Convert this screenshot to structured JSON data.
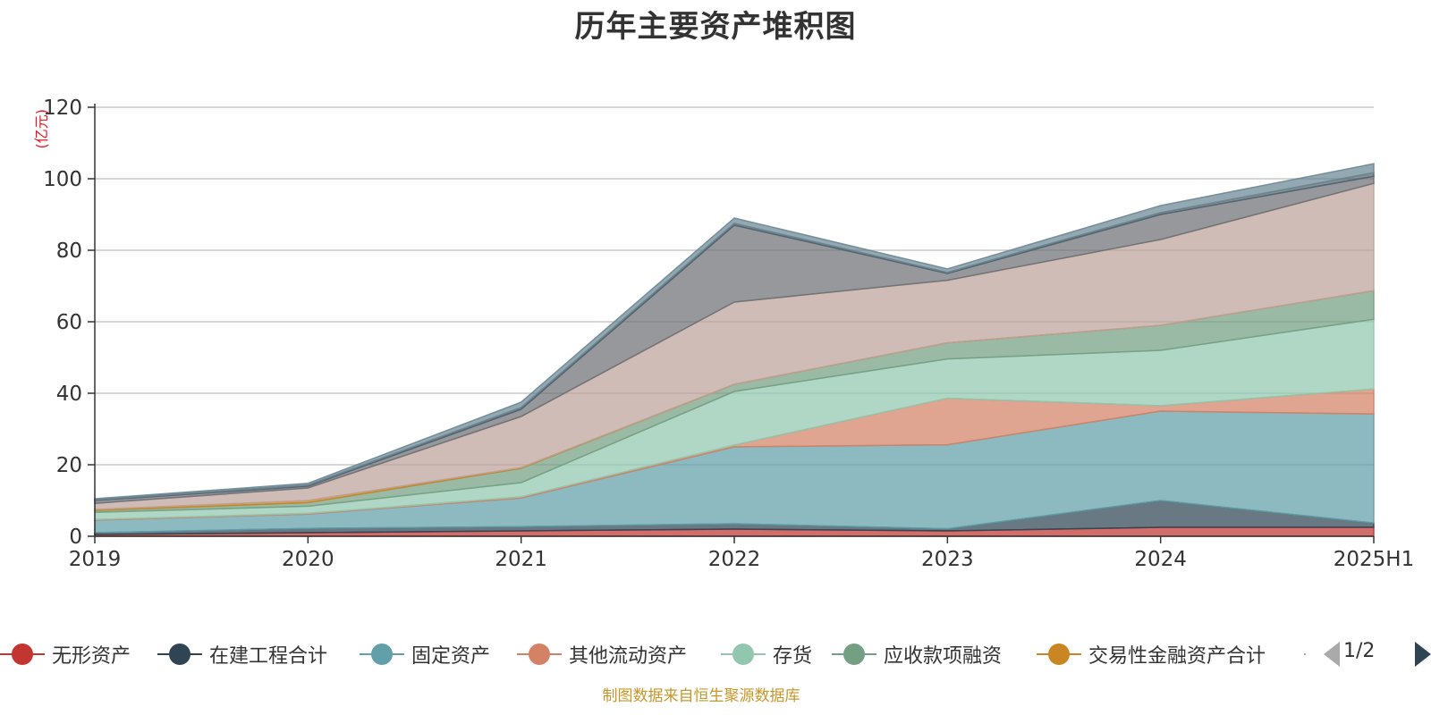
{
  "title": "历年主要资产堆积图",
  "source_note": "制图数据来自恒生聚源数据库",
  "legend_pager": "1/2",
  "chart_data": {
    "type": "area",
    "stacked": true,
    "title": "历年主要资产堆积图",
    "y_unit_label": "(亿元)",
    "categories": [
      "2019",
      "2020",
      "2021",
      "2022",
      "2023",
      "2024",
      "2025H1"
    ],
    "ylim": [
      0,
      120
    ],
    "yticks": [
      0,
      20,
      40,
      60,
      80,
      100,
      120
    ],
    "grid": true,
    "legend_position": "bottom",
    "series": [
      {
        "name": "无形资产",
        "color": "#c23531",
        "values": [
          0.5,
          1,
          1.5,
          2,
          1.5,
          2.5,
          2.5
        ]
      },
      {
        "name": "在建工程合计",
        "color": "#2f4554",
        "values": [
          0.5,
          1.2,
          1.2,
          1.5,
          0.6,
          7.5,
          1.2
        ]
      },
      {
        "name": "固定资产",
        "color": "#61a0a8",
        "values": [
          3.5,
          4,
          8,
          21.5,
          23.5,
          25,
          30.5
        ]
      },
      {
        "name": "其他流动资产",
        "color": "#d48265",
        "values": [
          0.2,
          0.2,
          0.3,
          0.5,
          13,
          1.5,
          7
        ]
      },
      {
        "name": "存货",
        "color": "#91c7ae",
        "values": [
          2,
          2,
          4,
          15,
          11,
          15.5,
          19.5
        ]
      },
      {
        "name": "应收款项融资",
        "color": "#749f83",
        "values": [
          0.5,
          1,
          4,
          2,
          4.5,
          7,
          8
        ]
      },
      {
        "name": "交易性金融资产合计",
        "color": "#ca8622",
        "values": [
          0.3,
          0.6,
          0.2,
          0,
          0,
          0,
          0
        ]
      },
      {
        "name": "",
        "color": "#bda29a",
        "values": [
          1.7,
          3.5,
          14.3,
          23,
          17.5,
          24,
          30
        ]
      },
      {
        "name": "",
        "color": "#6e7074",
        "values": [
          0.8,
          0.5,
          2,
          21.5,
          1.9,
          7,
          2
        ]
      },
      {
        "name": "",
        "color": "#546570",
        "values": [
          0.2,
          0.3,
          0.5,
          0.5,
          0.3,
          0.5,
          1
        ]
      },
      {
        "name": "",
        "color": "#6b8793",
        "values": [
          0.3,
          0.5,
          1.5,
          1.5,
          1,
          2,
          2.5
        ]
      }
    ]
  },
  "visible_legend": [
    {
      "name": "无形资产",
      "color": "#c23531"
    },
    {
      "name": "在建工程合计",
      "color": "#2f4554"
    },
    {
      "name": "固定资产",
      "color": "#61a0a8"
    },
    {
      "name": "其他流动资产",
      "color": "#d48265"
    },
    {
      "name": "存货",
      "color": "#91c7ae"
    },
    {
      "name": "应收款项融资",
      "color": "#749f83"
    },
    {
      "name": "交易性金融资产合计",
      "color": "#ca8622"
    },
    {
      "name": "",
      "color": "#bda29a"
    }
  ]
}
